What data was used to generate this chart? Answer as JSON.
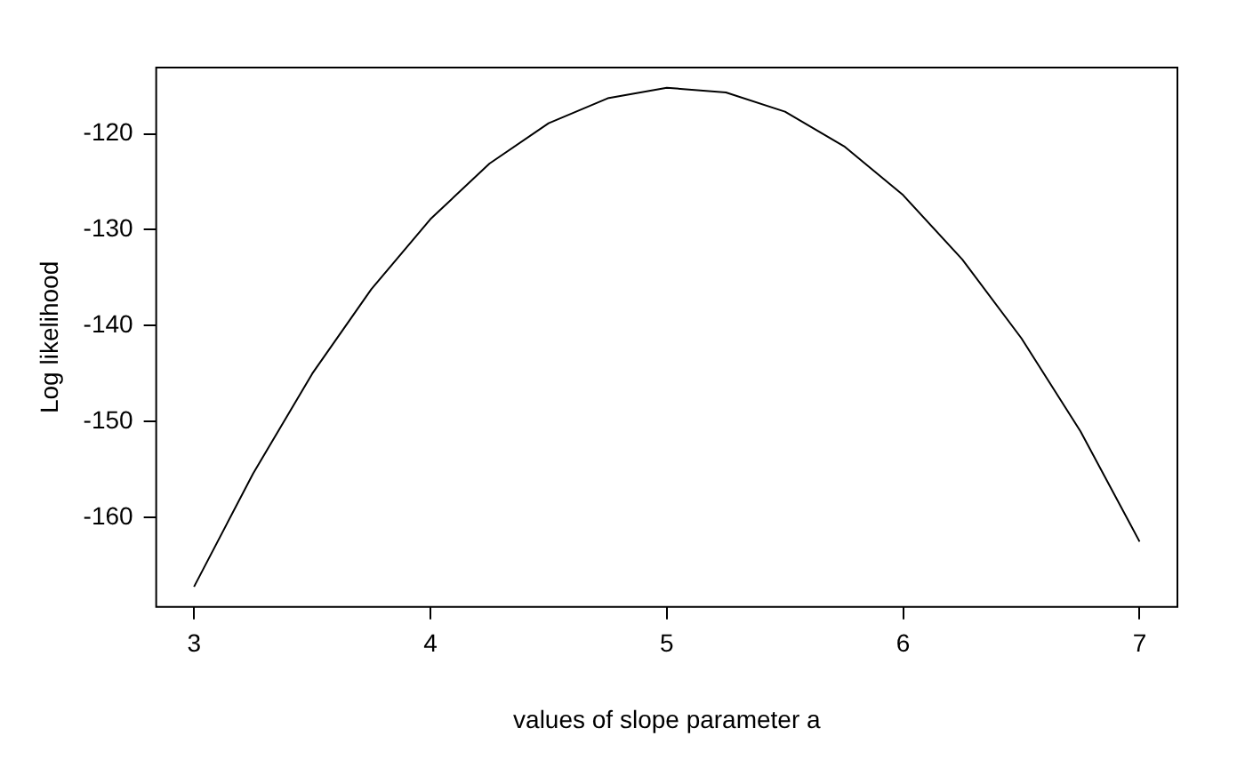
{
  "chart_data": {
    "type": "line",
    "xlabel": "values of slope parameter a",
    "ylabel": "Log likelihood",
    "x": [
      3,
      3.25,
      3.5,
      3.75,
      4,
      4.25,
      4.5,
      4.75,
      5,
      5.25,
      5.5,
      5.75,
      6,
      6.25,
      6.5,
      6.75,
      7
    ],
    "series": [
      {
        "color": "#000000",
        "values": [
          -167.2,
          -155.4,
          -145.0,
          -136.2,
          -128.9,
          -123.1,
          -118.9,
          -116.3,
          -115.2,
          -115.7,
          -117.7,
          -121.3,
          -126.4,
          -133.1,
          -141.3,
          -151.0,
          -162.5
        ]
      }
    ],
    "xlim": [
      2.84,
      7.16
    ],
    "xticks": [
      3,
      4,
      5,
      6,
      7
    ],
    "ylim": [
      -169.3,
      -113.1
    ],
    "yticks": [
      -160,
      -150,
      -140,
      -130,
      -120
    ],
    "grid": false,
    "legend": false,
    "marker": "none",
    "line_style": "solid"
  }
}
